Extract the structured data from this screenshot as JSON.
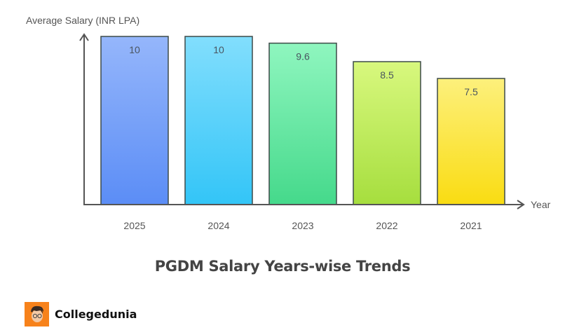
{
  "chart_data": {
    "type": "bar",
    "title": "PGDM Salary Years-wise Trends",
    "ylabel": "Average Salary (INR LPA)",
    "xlabel": "Year",
    "categories": [
      "2025",
      "2024",
      "2023",
      "2022",
      "2021"
    ],
    "values": [
      10,
      10,
      9.6,
      8.5,
      7.5
    ],
    "ylim": [
      0,
      10
    ],
    "grid": false,
    "data_labels": true,
    "colors": [
      [
        "#95b6fb",
        "#5b8df6"
      ],
      [
        "#82defd",
        "#33c5f7"
      ],
      [
        "#8ff6bf",
        "#45d98b"
      ],
      [
        "#d8f87e",
        "#a6de3e"
      ],
      [
        "#fdf07c",
        "#f9dc12"
      ]
    ]
  },
  "brand": {
    "name": "Collegedunia",
    "color": "#f7821b"
  }
}
